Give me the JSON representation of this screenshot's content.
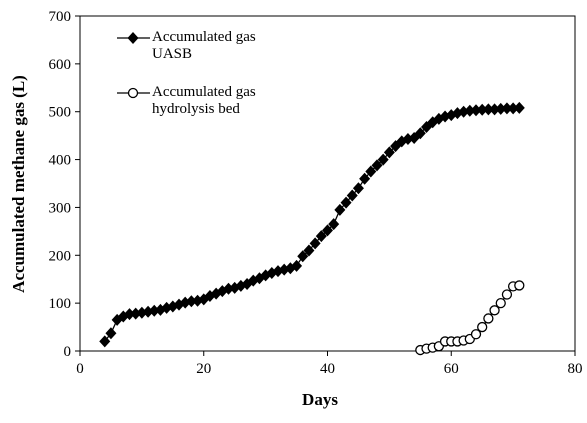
{
  "chart_data": {
    "type": "line",
    "x_label": "Days",
    "y_label": "Accumulated methane gas (L)",
    "xlim": [
      0,
      80
    ],
    "xticks": [
      0,
      20,
      40,
      60,
      80
    ],
    "ylim": [
      0,
      700
    ],
    "yticks": [
      0,
      100,
      200,
      300,
      400,
      500,
      600,
      700
    ],
    "series": [
      {
        "name": "Accumulated gas UASB",
        "color": "#000000",
        "marker": "diamond",
        "x": [
          4,
          5,
          6,
          7,
          8,
          9,
          10,
          11,
          12,
          13,
          14,
          15,
          16,
          17,
          18,
          19,
          20,
          21,
          22,
          23,
          24,
          25,
          26,
          27,
          28,
          29,
          30,
          31,
          32,
          33,
          34,
          35,
          36,
          37,
          38,
          39,
          40,
          41,
          42,
          43,
          44,
          45,
          46,
          47,
          48,
          49,
          50,
          51,
          52,
          53,
          54,
          55,
          56,
          57,
          58,
          59,
          60,
          61,
          62,
          63,
          64,
          65,
          66,
          67,
          68,
          69,
          70,
          71
        ],
        "values": [
          20,
          37,
          65,
          72,
          77,
          78,
          80,
          82,
          84,
          86,
          90,
          93,
          97,
          101,
          104,
          105,
          108,
          115,
          120,
          125,
          130,
          132,
          136,
          140,
          147,
          152,
          158,
          163,
          167,
          170,
          173,
          178,
          198,
          210,
          225,
          240,
          252,
          265,
          295,
          310,
          325,
          340,
          360,
          375,
          388,
          400,
          415,
          428,
          438,
          443,
          445,
          455,
          468,
          478,
          485,
          490,
          493,
          497,
          500,
          502,
          503,
          504,
          505,
          505,
          506,
          507,
          507,
          508
        ]
      },
      {
        "name": "Accumulated gas hydrolysis bed",
        "color": "#000000",
        "marker": "circle",
        "x": [
          55,
          56,
          57,
          58,
          59,
          60,
          61,
          62,
          63,
          64,
          65,
          66,
          67,
          68,
          69,
          70,
          71
        ],
        "values": [
          2,
          5,
          7,
          10,
          20,
          20,
          20,
          22,
          25,
          35,
          50,
          68,
          85,
          100,
          118,
          135,
          137
        ]
      }
    ]
  }
}
